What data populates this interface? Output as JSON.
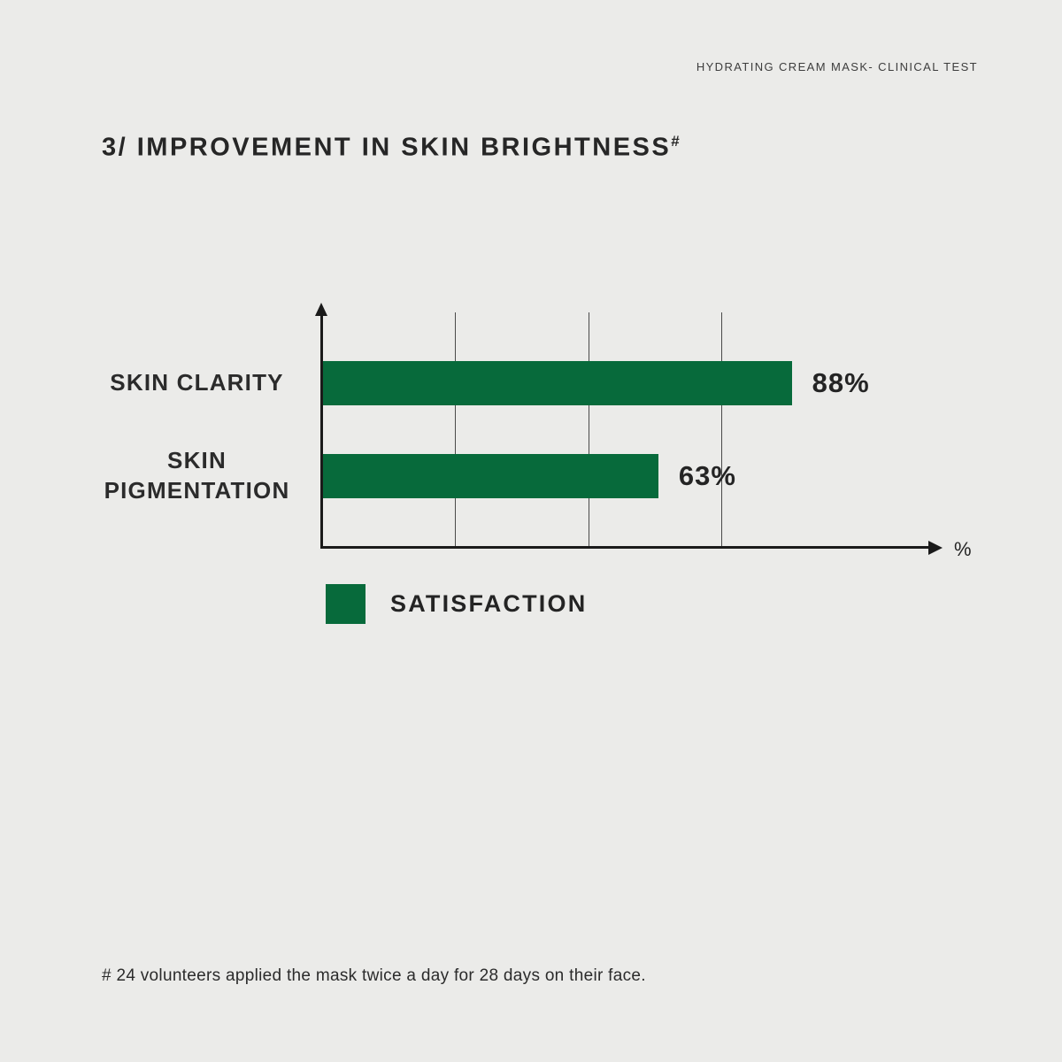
{
  "page": {
    "background": "#EBEBE9",
    "header": "HYDRATING CREAM MASK- CLINICAL TEST",
    "title": "3/ IMPROVEMENT IN SKIN BRIGHTNESS",
    "title_superscript": "#",
    "footnote": "# 24 volunteers applied the mask twice a day for 28 days on their face."
  },
  "chart_data": {
    "type": "bar",
    "orientation": "horizontal",
    "title": "3/ IMPROVEMENT IN SKIN BRIGHTNESS#",
    "categories": [
      "SKIN CLARITY",
      "SKIN PIGMENTATION"
    ],
    "series": [
      {
        "name": "SATISFACTION",
        "values": [
          88,
          63
        ]
      }
    ],
    "value_labels": [
      "88%",
      "63%"
    ],
    "xlabel": "%",
    "xlim": [
      0,
      100
    ],
    "grid_ticks": [
      25,
      50,
      75
    ],
    "grid": "vertical unlabeled gridlines",
    "legend": {
      "label": "SATISFACTION",
      "position": "below-chart-left"
    },
    "colors": {
      "bar": "#076A3B",
      "axis": "#1A1A1A",
      "grid": "#4A4A4A",
      "text": "#2B2B2B",
      "background": "#EBEBE9"
    }
  }
}
